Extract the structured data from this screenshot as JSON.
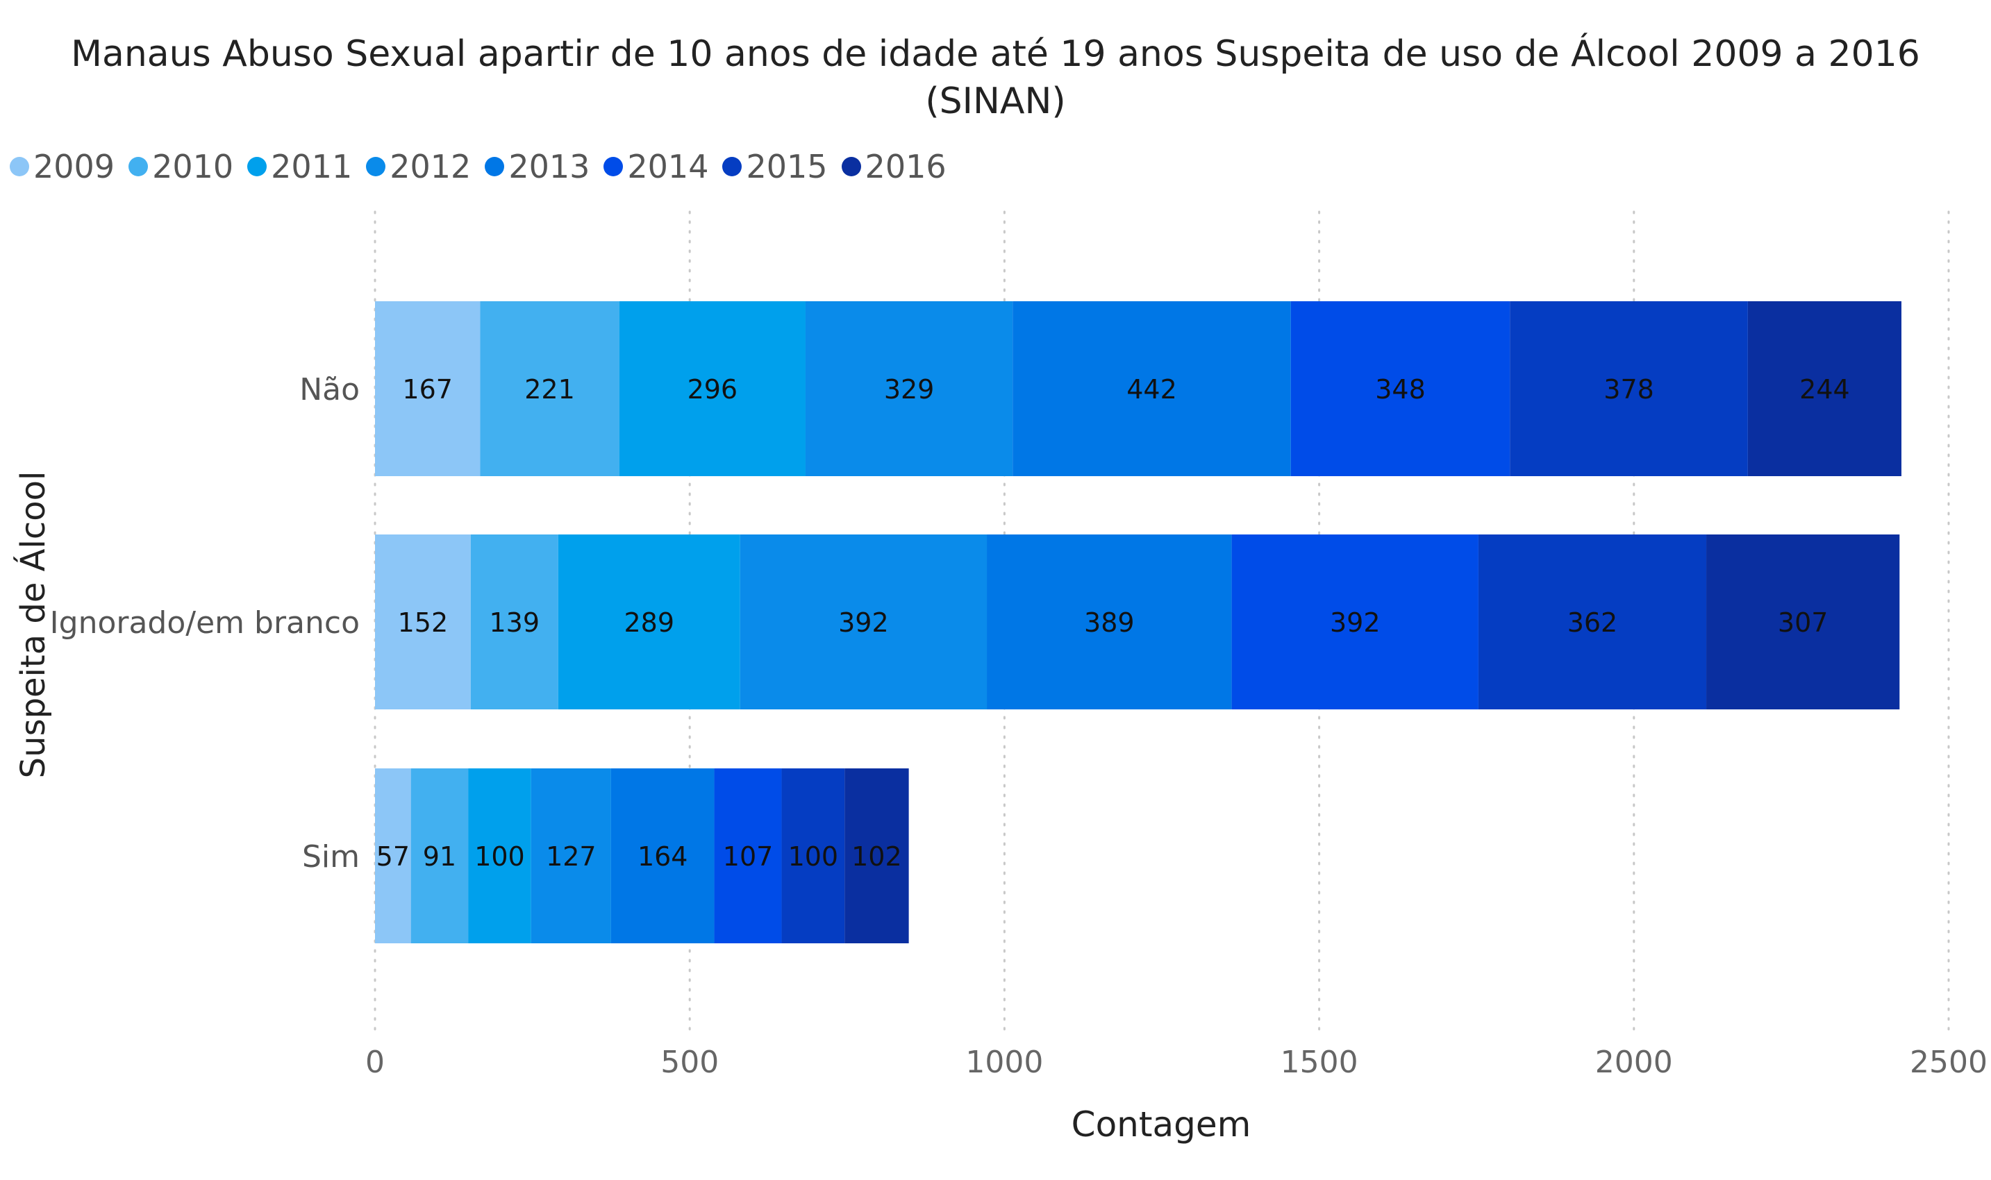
{
  "chart_data": {
    "type": "bar",
    "orientation": "horizontal",
    "stacked": true,
    "title_lines": [
      "Manaus Abuso Sexual apartir de 10 anos de idade até 19 anos Suspeita de uso de Álcool 2009 a 2016",
      "(SINAN)"
    ],
    "xlabel": "Contagem",
    "ylabel": "Suspeita de Álcool",
    "xlim": [
      0,
      2500
    ],
    "x_ticks": [
      0,
      500,
      1000,
      1500,
      2000,
      2500
    ],
    "grid": "vertical dotted",
    "legend_position": "top-left",
    "categories": [
      "Não",
      "Ignorado/em branco",
      "Sim"
    ],
    "series": [
      {
        "name": "2009",
        "color": "#8cc6f7",
        "values": [
          167,
          152,
          57
        ]
      },
      {
        "name": "2010",
        "color": "#42b0f0",
        "values": [
          221,
          139,
          91
        ]
      },
      {
        "name": "2011",
        "color": "#00a0ec",
        "values": [
          296,
          289,
          100
        ]
      },
      {
        "name": "2012",
        "color": "#0a8bea",
        "values": [
          329,
          392,
          127
        ]
      },
      {
        "name": "2013",
        "color": "#0077e6",
        "values": [
          442,
          389,
          164
        ]
      },
      {
        "name": "2014",
        "color": "#004ce8",
        "values": [
          348,
          392,
          107
        ]
      },
      {
        "name": "2015",
        "color": "#053dc2",
        "values": [
          378,
          362,
          100
        ]
      },
      {
        "name": "2016",
        "color": "#0a2fa0",
        "values": [
          244,
          307,
          102
        ]
      }
    ]
  }
}
